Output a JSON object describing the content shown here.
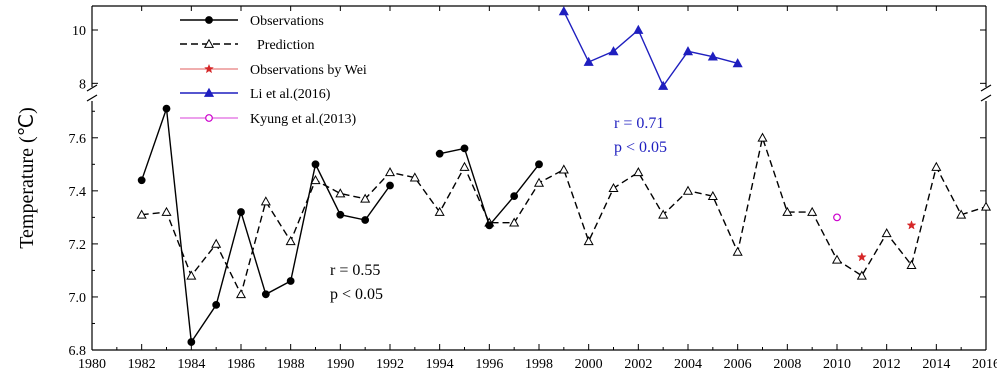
{
  "chart_data": {
    "type": "line",
    "title": "",
    "xlabel": "",
    "ylabel": "Temperature (℃)",
    "xlim": [
      1980,
      2016
    ],
    "ylim_lower": [
      6.8,
      7.75
    ],
    "ylim_upper": [
      7.75,
      10.9
    ],
    "broken_axis_at": 7.75,
    "x_ticks": [
      "1980",
      "1982",
      "1984",
      "1986",
      "1988",
      "1990",
      "1992",
      "1994",
      "1996",
      "1998",
      "2000",
      "2002",
      "2004",
      "2006",
      "2008",
      "2010",
      "2012",
      "2014",
      "2016"
    ],
    "y_ticks_lower": [
      "6.8",
      "7.0",
      "7.2",
      "7.4",
      "7.6"
    ],
    "y_ticks_upper": [
      "8",
      "10"
    ],
    "series": [
      {
        "name": "Observations",
        "style": "solid line with filled circles",
        "color": "#000000",
        "segments": [
          {
            "x": [
              1982,
              1983,
              1984,
              1985,
              1986,
              1987,
              1988,
              1989,
              1990,
              1991,
              1992
            ],
            "y": [
              7.44,
              7.71,
              6.83,
              6.97,
              7.32,
              7.01,
              7.06,
              7.5,
              7.31,
              7.29,
              7.42
            ]
          },
          {
            "x": [
              1994,
              1995,
              1996,
              1997,
              1998
            ],
            "y": [
              7.54,
              7.56,
              7.27,
              7.38,
              7.5
            ]
          }
        ]
      },
      {
        "name": "Prediction",
        "style": "dashed line with open triangles",
        "color": "#000000",
        "x": [
          1982,
          1983,
          1984,
          1985,
          1986,
          1987,
          1988,
          1989,
          1990,
          1991,
          1992,
          1993,
          1994,
          1995,
          1996,
          1997,
          1998,
          1999,
          2000,
          2001,
          2002,
          2003,
          2004,
          2005,
          2006,
          2007,
          2008,
          2009,
          2010,
          2011,
          2012,
          2013,
          2014,
          2015,
          2016
        ],
        "y": [
          7.31,
          7.32,
          7.08,
          7.2,
          7.01,
          7.36,
          7.21,
          7.44,
          7.39,
          7.37,
          7.47,
          7.45,
          7.32,
          7.49,
          7.28,
          7.28,
          7.43,
          7.48,
          7.21,
          7.41,
          7.47,
          7.31,
          7.4,
          7.38,
          7.17,
          7.6,
          7.32,
          7.32,
          7.14,
          7.08,
          7.24,
          7.12,
          7.49,
          7.31,
          7.34
        ]
      },
      {
        "name": "Observations by Wei",
        "style": "red stars",
        "color": "#d62728",
        "x": [
          2011,
          2013
        ],
        "y": [
          7.15,
          7.27
        ]
      },
      {
        "name": "Li et al.(2016)",
        "style": "solid blue line with filled triangles",
        "color": "#1f1fbf",
        "x": [
          1999,
          2000,
          2001,
          2002,
          2003,
          2004,
          2005,
          2006
        ],
        "y": [
          10.7,
          8.8,
          9.2,
          10.0,
          7.9,
          9.2,
          9.0,
          8.75
        ]
      },
      {
        "name": "Kyung et al.(2013)",
        "style": "magenta open circle",
        "color": "#cc00cc",
        "x": [
          2010
        ],
        "y": [
          7.3
        ]
      }
    ],
    "annotations": [
      {
        "line1": "r = 0.55",
        "line2": "p < 0.05",
        "color": "#000000"
      },
      {
        "line1": "r = 0.71",
        "line2": "p < 0.05",
        "color": "#1f1fbf"
      }
    ],
    "legend_position": "top-left"
  }
}
